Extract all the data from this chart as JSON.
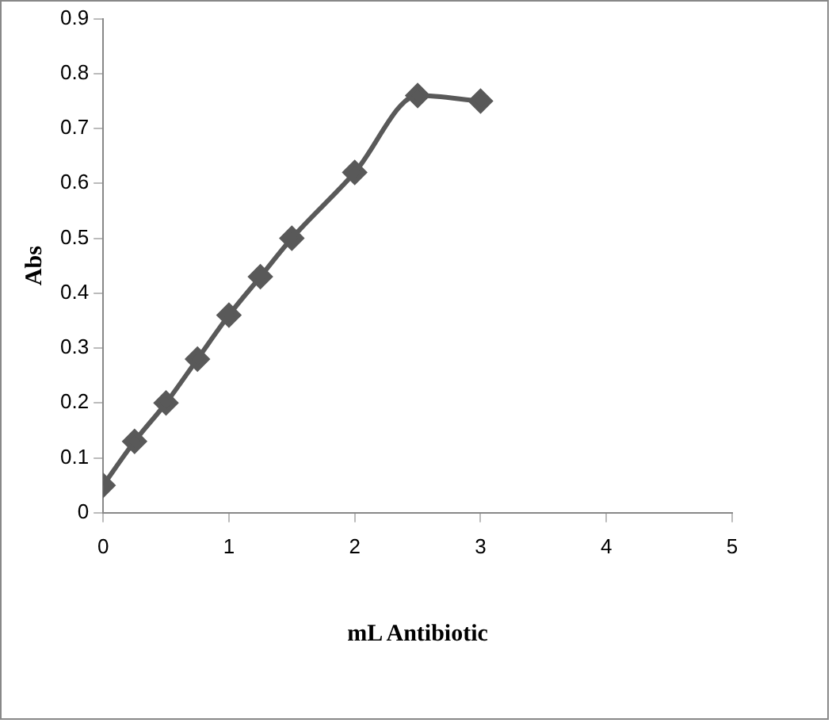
{
  "chart_data": {
    "type": "line",
    "xlabel": "mL Antibiotic",
    "ylabel": "Abs",
    "x": [
      0,
      0.25,
      0.5,
      0.75,
      1,
      1.25,
      1.5,
      2,
      2.5,
      3
    ],
    "series": [
      {
        "color": "#595959",
        "values": [
          0.05,
          0.13,
          0.2,
          0.28,
          0.36,
          0.43,
          0.5,
          0.62,
          0.76,
          0.75
        ]
      }
    ],
    "xlim": [
      0,
      5
    ],
    "xticks": [
      0,
      1,
      2,
      3,
      4,
      5
    ],
    "ylim": [
      0,
      0.9
    ],
    "yticks": [
      0,
      0.1,
      0.2,
      0.3,
      0.4,
      0.5,
      0.6,
      0.7,
      0.8,
      0.9
    ],
    "grid": false,
    "legend": false,
    "marker": "diamond",
    "line_style": "solid"
  }
}
